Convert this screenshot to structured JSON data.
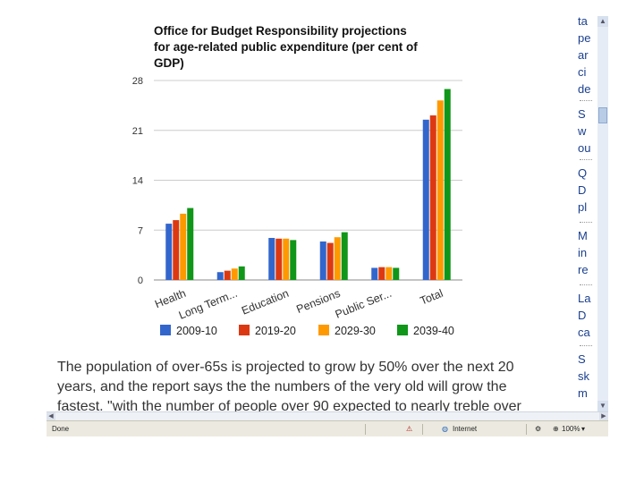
{
  "chart_data": {
    "type": "bar",
    "title": "Office for Budget Responsibility projections for age-related public expenditure (per cent of GDP)",
    "title_lines": [
      "Office for Budget Responsibility projections",
      "for age-related public expenditure (per cent of",
      "GDP)"
    ],
    "categories": [
      "Health",
      "Long Term...",
      "Education",
      "Pensions",
      "Public Ser...",
      "Total"
    ],
    "series": [
      {
        "name": "2009-10",
        "color": "#3366cc",
        "values": [
          7.9,
          1.1,
          5.9,
          5.4,
          1.7,
          22.5
        ]
      },
      {
        "name": "2019-20",
        "color": "#dc3912",
        "values": [
          8.4,
          1.3,
          5.8,
          5.2,
          1.8,
          23.1
        ]
      },
      {
        "name": "2029-30",
        "color": "#ff9900",
        "values": [
          9.3,
          1.6,
          5.8,
          6.0,
          1.8,
          25.2
        ]
      },
      {
        "name": "2039-40",
        "color": "#109618",
        "values": [
          10.1,
          1.9,
          5.6,
          6.7,
          1.7,
          26.8
        ]
      }
    ],
    "yticks": [
      0,
      7,
      14,
      21,
      28
    ],
    "ylim": [
      0,
      28
    ],
    "xlabel": "",
    "ylabel": "",
    "grid": true,
    "legend_position": "bottom"
  },
  "article": {
    "lines": [
      "The population of over-65s is projected to grow by 50% over the next 20",
      "years, and the report says the the numbers of the very old will grow the",
      "fastest. \"with the number of people over 90 expected to nearly treble over"
    ]
  },
  "sidebar": {
    "items": [
      {
        "lines": [
          "ta",
          "pe",
          "ar",
          "ci",
          "de"
        ]
      },
      {
        "lines": [
          "S",
          "w",
          "ou"
        ]
      },
      {
        "lines": [
          "Q",
          "D",
          "pl"
        ]
      },
      {
        "lines": [
          "M",
          "in",
          "re"
        ]
      },
      {
        "lines": [
          "La",
          "D",
          "ca"
        ]
      },
      {
        "lines": [
          "S",
          "sk",
          "m"
        ]
      }
    ]
  },
  "statusbar": {
    "left": "Done",
    "zone": "Internet",
    "zoom": "100%"
  }
}
